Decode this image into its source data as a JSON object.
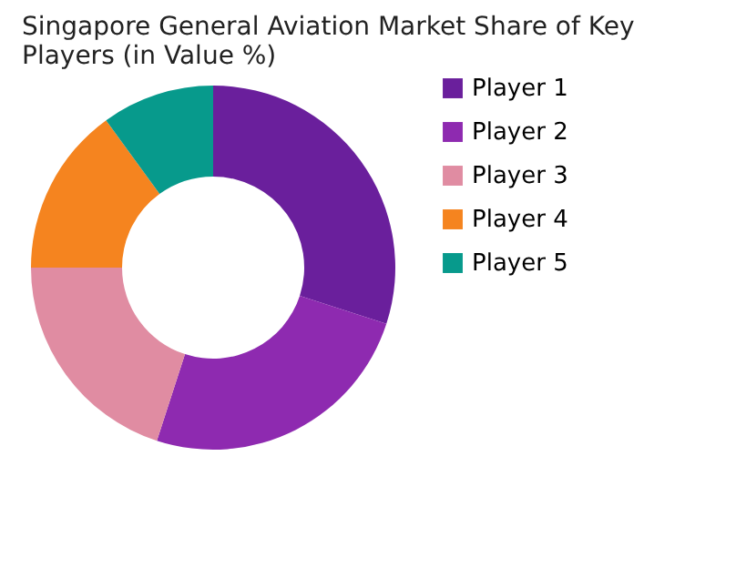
{
  "chart_data": {
    "type": "donut",
    "title": "Singapore General Aviation Market Share of Key Players (in Value %)",
    "categories": [
      "Player 1",
      "Player 2",
      "Player 3",
      "Player 4",
      "Player 5"
    ],
    "values": [
      30,
      25,
      20,
      15,
      10
    ],
    "colors": [
      "#6a1f9c",
      "#8e2ab0",
      "#e08ca2",
      "#f5841f",
      "#079a8c"
    ],
    "legend": "right"
  }
}
